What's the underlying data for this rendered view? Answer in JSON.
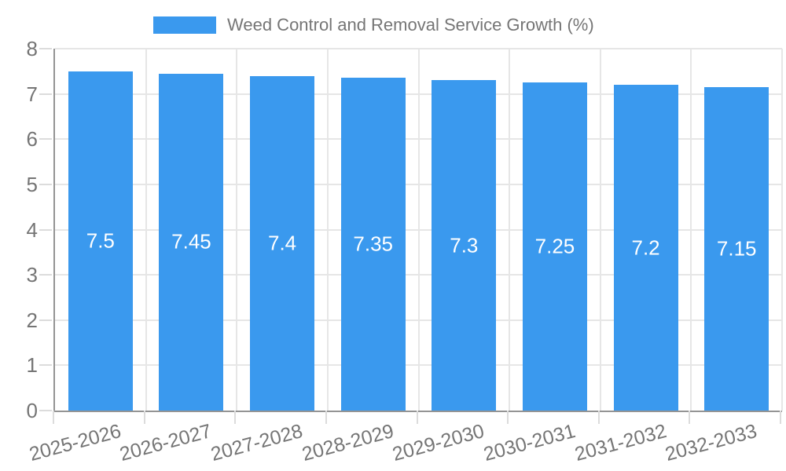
{
  "chart_data": {
    "type": "bar",
    "categories": [
      "2025-2026",
      "2026-2027",
      "2027-2028",
      "2028-2029",
      "2029-2030",
      "2030-2031",
      "2031-2032",
      "2032-2033"
    ],
    "series": [
      {
        "name": "Weed Control and Removal Service Growth (%)",
        "values": [
          7.5,
          7.45,
          7.4,
          7.35,
          7.3,
          7.25,
          7.2,
          7.15
        ]
      }
    ],
    "bar_value_labels": [
      "7.5",
      "7.45",
      "7.4",
      "7.35",
      "7.3",
      "7.25",
      "7.2",
      "7.15"
    ],
    "title": "",
    "xlabel": "",
    "ylabel": "",
    "ylim": [
      0,
      8
    ],
    "yticks": [
      0,
      1,
      2,
      3,
      4,
      5,
      6,
      7,
      8
    ],
    "grid": true,
    "legend_position": "top",
    "value_label_position": "inside-center",
    "colors": {
      "bar": "#3A99EE",
      "text": "#757575",
      "bar_label_text": "#ffffff",
      "gridline": "#e6e6e6",
      "axis_line": "#949494",
      "tick_mark": "#dcdcdc",
      "background": "#ffffff"
    }
  }
}
